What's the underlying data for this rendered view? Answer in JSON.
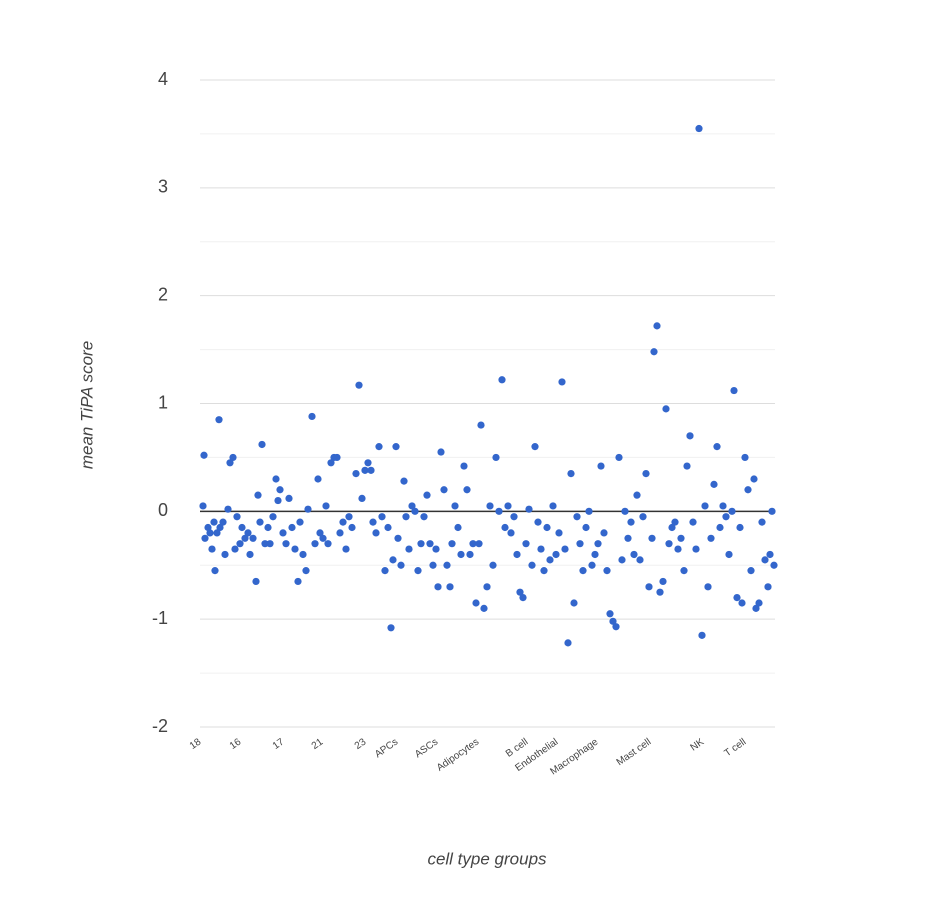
{
  "chart_data": {
    "type": "scatter",
    "x_label": "cell type groups",
    "y_label": "mean TiPA score",
    "color": "#3366cc",
    "xlim": [
      0,
      575
    ],
    "ylim": [
      -2,
      4
    ],
    "yticks": [
      -2,
      -1,
      0,
      1,
      2,
      3,
      4
    ],
    "minor_yticks": [
      -1.5,
      -0.5,
      0.5,
      1.5,
      2.5,
      3.5
    ],
    "xticks": [
      {
        "value": 0,
        "label": "18"
      },
      {
        "value": 40,
        "label": "16"
      },
      {
        "value": 83,
        "label": "17"
      },
      {
        "value": 122,
        "label": "21"
      },
      {
        "value": 165,
        "label": "23"
      },
      {
        "value": 197,
        "label": "APCs"
      },
      {
        "value": 237,
        "label": "ASCs"
      },
      {
        "value": 278,
        "label": "Adipocytes"
      },
      {
        "value": 327,
        "label": "B cell"
      },
      {
        "value": 357,
        "label": "Endothelial"
      },
      {
        "value": 397,
        "label": "Macrophage"
      },
      {
        "value": 450,
        "label": "Mast cell"
      },
      {
        "value": 503,
        "label": "NK"
      },
      {
        "value": 545,
        "label": "T cell"
      }
    ],
    "grid": true,
    "x": [
      3,
      5,
      4,
      8,
      10,
      12,
      14,
      15,
      17,
      19,
      20,
      23,
      25,
      28,
      30,
      33,
      35,
      37,
      40,
      42,
      45,
      48,
      50,
      53,
      56,
      58,
      60,
      62,
      65,
      68,
      70,
      73,
      76,
      78,
      80,
      83,
      86,
      89,
      92,
      95,
      98,
      100,
      103,
      106,
      108,
      112,
      115,
      118,
      120,
      123,
      126,
      128,
      131,
      134,
      137,
      140,
      143,
      146,
      149,
      152,
      156,
      159,
      162,
      165,
      168,
      171,
      173,
      176,
      179,
      182,
      185,
      188,
      191,
      193,
      196,
      198,
      201,
      204,
      206,
      209,
      212,
      215,
      218,
      221,
      224,
      227,
      230,
      233,
      236,
      238,
      241,
      244,
      247,
      250,
      252,
      255,
      258,
      261,
      264,
      267,
      270,
      273,
      276,
      279,
      281,
      284,
      287,
      290,
      293,
      296,
      299,
      302,
      305,
      308,
      311,
      314,
      317,
      320,
      323,
      326,
      329,
      332,
      335,
      338,
      341,
      344,
      347,
      350,
      353,
      356,
      359,
      362,
      365,
      368,
      371,
      374,
      377,
      380,
      383,
      386,
      389,
      392,
      395,
      398,
      401,
      404,
      407,
      410,
      413,
      416,
      419,
      422,
      425,
      428,
      431,
      434,
      437,
      440,
      443,
      446,
      449,
      452,
      454,
      457,
      460,
      463,
      466,
      469,
      472,
      475,
      478,
      481,
      484,
      487,
      490,
      493,
      496,
      499,
      502,
      505,
      508,
      511,
      514,
      517,
      520,
      523,
      526,
      529,
      532,
      534,
      537,
      540,
      542,
      545,
      548,
      551,
      554,
      556,
      559,
      562,
      565,
      568,
      570,
      572,
      574
    ],
    "y": [
      0.05,
      -0.25,
      0.52,
      -0.15,
      -0.2,
      -0.35,
      -0.1,
      -0.55,
      -0.2,
      0.85,
      -0.15,
      -0.1,
      -0.4,
      0.02,
      0.45,
      0.5,
      -0.35,
      -0.05,
      -0.3,
      -0.15,
      -0.25,
      -0.2,
      -0.4,
      -0.25,
      -0.65,
      0.15,
      -0.1,
      0.62,
      -0.3,
      -0.15,
      -0.3,
      -0.05,
      0.3,
      0.1,
      0.2,
      -0.2,
      -0.3,
      0.12,
      -0.15,
      -0.35,
      -0.65,
      -0.1,
      -0.4,
      -0.55,
      0.02,
      0.88,
      -0.3,
      0.3,
      -0.2,
      -0.25,
      0.05,
      -0.3,
      0.45,
      0.5,
      0.5,
      -0.2,
      -0.1,
      -0.35,
      -0.05,
      -0.15,
      0.35,
      1.17,
      0.12,
      0.38,
      0.45,
      0.38,
      -0.1,
      -0.2,
      0.6,
      -0.05,
      -0.55,
      -0.15,
      -1.08,
      -0.45,
      0.6,
      -0.25,
      -0.5,
      0.28,
      -0.05,
      -0.35,
      0.05,
      0,
      -0.55,
      -0.3,
      -0.05,
      0.15,
      -0.3,
      -0.5,
      -0.35,
      -0.7,
      0.55,
      0.2,
      -0.5,
      -0.7,
      -0.3,
      0.05,
      -0.15,
      -0.4,
      0.42,
      0.2,
      -0.4,
      -0.3,
      -0.85,
      -0.3,
      0.8,
      -0.9,
      -0.7,
      0.05,
      -0.5,
      0.5,
      0,
      1.22,
      -0.15,
      0.05,
      -0.2,
      -0.05,
      -0.4,
      -0.75,
      -0.8,
      -0.3,
      0.02,
      -0.5,
      0.6,
      -0.1,
      -0.35,
      -0.55,
      -0.15,
      -0.45,
      0.05,
      -0.4,
      -0.2,
      1.2,
      -0.35,
      -1.22,
      0.35,
      -0.85,
      -0.05,
      -0.3,
      -0.55,
      -0.15,
      0,
      -0.5,
      -0.4,
      -0.3,
      0.42,
      -0.2,
      -0.55,
      -0.95,
      -1.02,
      -1.07,
      0.5,
      -0.45,
      0,
      -0.25,
      -0.1,
      -0.4,
      0.15,
      -0.45,
      -0.05,
      0.35,
      -0.7,
      -0.25,
      1.48,
      1.72,
      -0.75,
      -0.65,
      0.95,
      -0.3,
      -0.15,
      -0.1,
      -0.35,
      -0.25,
      -0.55,
      0.42,
      0.7,
      -0.1,
      -0.35,
      3.55,
      -1.15,
      0.05,
      -0.7,
      -0.25,
      0.25,
      0.6,
      -0.15,
      0.05,
      -0.05,
      -0.4,
      0,
      1.12,
      -0.8,
      -0.15,
      -0.85,
      0.5,
      0.2,
      -0.55,
      0.3,
      -0.9,
      -0.85,
      -0.1,
      -0.45,
      -0.7,
      -0.4,
      0,
      -0.5
    ]
  }
}
